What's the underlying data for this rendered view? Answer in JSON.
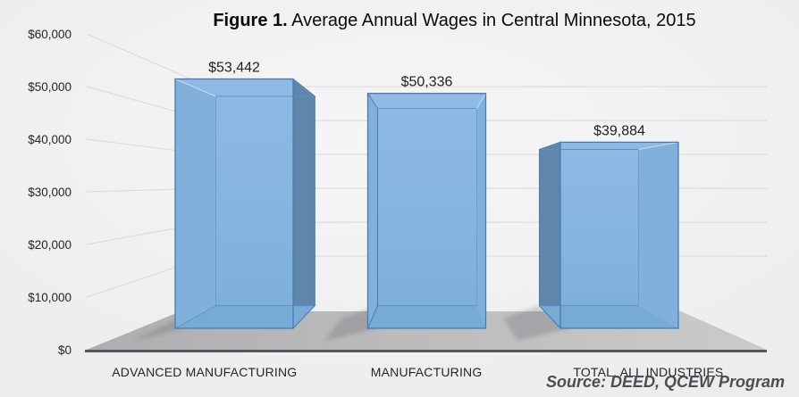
{
  "title": {
    "prefix": "Figure 1.",
    "rest": " Average Annual Wages in Central Minnesota, 2015"
  },
  "source": "Source: DEED, QCEW Program",
  "chart_data": {
    "type": "bar",
    "projection": "3d-perspective-column",
    "categories": [
      "ADVANCED MANUFACTURING",
      "MANUFACTURING",
      "TOTAL, ALL INDUSTRIES"
    ],
    "values": [
      53442,
      50336,
      39884
    ],
    "value_labels": [
      "$53,442",
      "$50,336",
      "$39,884"
    ],
    "y_ticks": [
      "$0",
      "$10,000",
      "$20,000",
      "$30,000",
      "$40,000",
      "$50,000",
      "$60,000"
    ],
    "ylim": [
      0,
      60000
    ],
    "grid": true,
    "legend": false,
    "colors": {
      "bar_front": "#7dafdb",
      "bar_front_top": "#8ebae4",
      "bar_top": "#79aad7",
      "bar_side_dark": "#5f86ab",
      "bar_side_inner": "#81b0da",
      "bar_bottom": "#78aad6",
      "bar_stroke": "#447cb2",
      "bar_back_stroke": "#5d8fc0",
      "bar_highlight": "#c6dff3",
      "floor_left": "#aeaeb0",
      "floor_right": "#cbcbcb",
      "axis_line": "#54585c",
      "gridline": "#d8d8d8",
      "bg_center": "#f6f6f6",
      "bg_edge": "#e9e9e9",
      "text": "#262626",
      "source_text": "#4a4f55"
    }
  }
}
